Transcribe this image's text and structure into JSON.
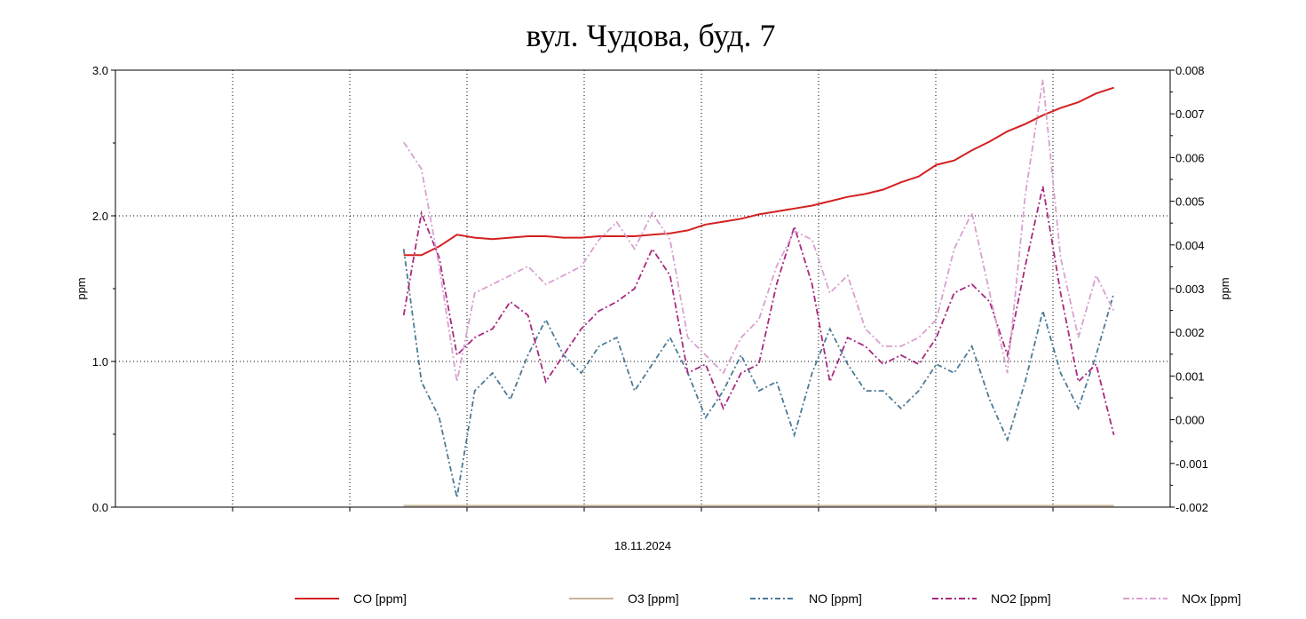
{
  "chart_data": {
    "type": "line",
    "title": "вул. Чудова, буд. 7",
    "xlabel": "18.11.2024",
    "ylabel_left": "ppm",
    "ylabel_right": "ppm",
    "ylim_left": [
      0,
      3
    ],
    "ylim_right": [
      -0.002,
      0.008
    ],
    "left_ticks": [
      "0.0",
      "1.0",
      "2.0",
      "3.0"
    ],
    "right_ticks": [
      "-0.002",
      "-0.001",
      "0.000",
      "0.001",
      "0.002",
      "0.003",
      "0.004",
      "0.005",
      "0.006",
      "0.007",
      "0.008"
    ],
    "xlim": [
      0,
      9
    ],
    "x_start": 2.46,
    "x_step": 0.1515,
    "grid": true,
    "legend_position": "bottom",
    "series": [
      {
        "name": "CO [ppm]",
        "axis": "left",
        "color": "#d42020",
        "dash": "",
        "values": [
          1.73,
          1.73,
          1.79,
          1.87,
          1.85,
          1.84,
          1.85,
          1.86,
          1.86,
          1.85,
          1.85,
          1.86,
          1.86,
          1.86,
          1.87,
          1.88,
          1.9,
          1.94,
          1.96,
          1.98,
          2.01,
          2.03,
          2.05,
          2.07,
          2.1,
          2.13,
          2.15,
          2.18,
          2.23,
          2.27,
          2.35,
          2.38,
          2.45,
          2.51,
          2.58,
          2.63,
          2.69,
          2.74,
          2.78,
          2.84,
          2.88
        ]
      },
      {
        "name": "O3 [ppm]",
        "axis": "left",
        "color": "#c8b49a",
        "dash": "",
        "values": [
          0.01,
          0.01,
          0.01,
          0.01,
          0.01,
          0.01,
          0.01,
          0.01,
          0.01,
          0.01,
          0.01,
          0.01,
          0.01,
          0.01,
          0.01,
          0.01,
          0.01,
          0.01,
          0.01,
          0.01,
          0.01,
          0.01,
          0.01,
          0.01,
          0.01,
          0.01,
          0.01,
          0.01,
          0.01,
          0.01,
          0.01,
          0.01,
          0.01,
          0.01,
          0.01,
          0.01,
          0.01,
          0.01,
          0.01,
          0.01,
          0.01
        ]
      },
      {
        "name": "NO [ppm]",
        "axis": "right",
        "color": "#4a7a96",
        "dash": "6,3,2,3",
        "values": [
          0.00391,
          0.00087,
          5e-05,
          -0.00178,
          0.00066,
          0.00107,
          0.00046,
          0.00148,
          0.00229,
          0.00148,
          0.00107,
          0.00168,
          0.00188,
          0.00066,
          0.00127,
          0.00188,
          0.00107,
          5e-05,
          0.00066,
          0.00148,
          0.00066,
          0.00087,
          -0.00035,
          0.00107,
          0.00208,
          0.00127,
          0.00066,
          0.00066,
          0.00026,
          0.00066,
          0.00127,
          0.00107,
          0.00168,
          0.00046,
          -0.00046,
          0.00087,
          0.00249,
          0.00107,
          0.00026,
          0.00148,
          0.0029
        ]
      },
      {
        "name": "NO2 [ppm]",
        "axis": "right",
        "color": "#a8287e",
        "dash": "7,3,2,3",
        "values": [
          0.00239,
          0.00473,
          0.00371,
          0.00148,
          0.00188,
          0.00208,
          0.0027,
          0.00239,
          0.00087,
          0.00148,
          0.00208,
          0.00249,
          0.0027,
          0.003,
          0.00391,
          0.0033,
          0.00107,
          0.00127,
          0.00026,
          0.00107,
          0.00127,
          0.0031,
          0.00442,
          0.0031,
          0.00087,
          0.00188,
          0.00168,
          0.00127,
          0.00148,
          0.00127,
          0.00188,
          0.0029,
          0.0031,
          0.0027,
          0.00148,
          0.00351,
          0.00534,
          0.0029,
          0.00087,
          0.00127,
          -0.00035
        ]
      },
      {
        "name": "NOx [ppm]",
        "axis": "right",
        "color": "#d8a0d0",
        "dash": "7,3,2,3",
        "values": [
          0.00635,
          0.00574,
          0.00351,
          0.00087,
          0.0029,
          0.0031,
          0.0033,
          0.00351,
          0.0031,
          0.0033,
          0.00351,
          0.00412,
          0.00452,
          0.00391,
          0.00473,
          0.00412,
          0.00188,
          0.00148,
          0.00107,
          0.00188,
          0.00229,
          0.00351,
          0.00432,
          0.00412,
          0.0029,
          0.0033,
          0.00208,
          0.00168,
          0.00168,
          0.00188,
          0.00229,
          0.00391,
          0.00473,
          0.0029,
          0.00107,
          0.00513,
          0.00778,
          0.00371,
          0.00188,
          0.0033,
          0.00249
        ]
      }
    ]
  }
}
